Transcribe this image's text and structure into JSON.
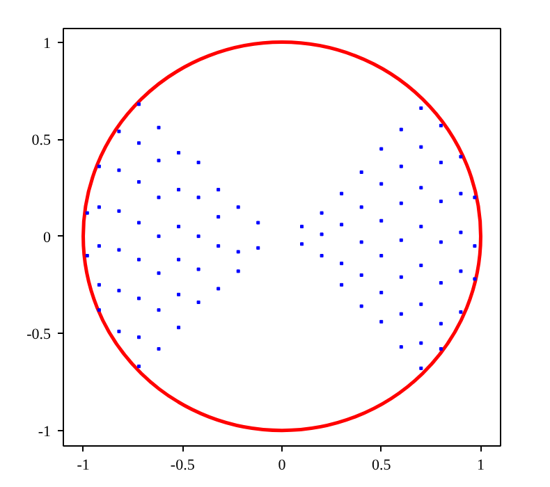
{
  "chart_data": {
    "type": "scatter",
    "xlim": [
      -1.1,
      1.1
    ],
    "ylim": [
      -1.08,
      1.07
    ],
    "xticks": [
      -1,
      -0.5,
      0,
      0.5,
      1
    ],
    "yticks": [
      -1,
      -0.5,
      0,
      0.5,
      1
    ],
    "grid": false,
    "series": [
      {
        "type": "scatter",
        "marker": "square",
        "color": "#0000ff",
        "x": [
          0.1,
          0.1,
          0.2,
          0.2,
          0.2,
          0.3,
          0.3,
          0.3,
          0.3,
          0.4,
          0.4,
          0.4,
          0.4,
          0.4,
          0.5,
          0.5,
          0.5,
          0.5,
          0.5,
          0.5,
          0.6,
          0.6,
          0.6,
          0.6,
          0.6,
          0.6,
          0.6,
          0.7,
          0.7,
          0.7,
          0.7,
          0.7,
          0.7,
          0.7,
          0.7,
          0.8,
          0.8,
          0.8,
          0.8,
          0.8,
          0.8,
          0.8,
          0.9,
          0.9,
          0.9,
          0.9,
          0.9,
          0.97,
          0.97,
          0.97,
          -0.12,
          -0.12,
          -0.22,
          -0.22,
          -0.22,
          -0.32,
          -0.32,
          -0.32,
          -0.32,
          -0.42,
          -0.42,
          -0.42,
          -0.42,
          -0.42,
          -0.52,
          -0.52,
          -0.52,
          -0.52,
          -0.52,
          -0.52,
          -0.62,
          -0.62,
          -0.62,
          -0.62,
          -0.62,
          -0.62,
          -0.62,
          -0.72,
          -0.72,
          -0.72,
          -0.72,
          -0.72,
          -0.72,
          -0.72,
          -0.72,
          -0.82,
          -0.82,
          -0.82,
          -0.82,
          -0.82,
          -0.82,
          -0.92,
          -0.92,
          -0.92,
          -0.92,
          -0.92,
          -0.98,
          -0.98
        ],
        "values": [
          0.05,
          -0.04,
          0.12,
          -0.1,
          0.01,
          0.22,
          0.06,
          -0.14,
          -0.25,
          0.33,
          0.15,
          -0.03,
          -0.2,
          -0.36,
          0.45,
          0.27,
          0.08,
          -0.1,
          -0.29,
          -0.44,
          0.55,
          0.36,
          0.17,
          -0.02,
          -0.21,
          -0.4,
          -0.57,
          0.66,
          0.46,
          0.25,
          0.05,
          -0.15,
          -0.35,
          -0.55,
          -0.68,
          0.57,
          0.38,
          0.18,
          -0.03,
          -0.24,
          -0.45,
          -0.58,
          0.41,
          0.22,
          0.02,
          -0.18,
          -0.39,
          0.2,
          -0.05,
          -0.22,
          -0.06,
          0.07,
          0.15,
          -0.08,
          -0.18,
          -0.27,
          0.1,
          0.24,
          -0.05,
          0.38,
          0.2,
          0.0,
          -0.17,
          -0.34,
          -0.47,
          -0.3,
          -0.12,
          0.05,
          0.24,
          0.43,
          -0.58,
          -0.38,
          -0.19,
          0.0,
          0.2,
          0.39,
          0.56,
          0.68,
          0.48,
          0.28,
          0.07,
          -0.12,
          -0.32,
          -0.52,
          -0.67,
          0.54,
          0.34,
          0.13,
          -0.07,
          -0.28,
          -0.49,
          0.36,
          0.15,
          -0.05,
          -0.25,
          -0.38,
          0.12,
          -0.1
        ]
      }
    ]
  }
}
